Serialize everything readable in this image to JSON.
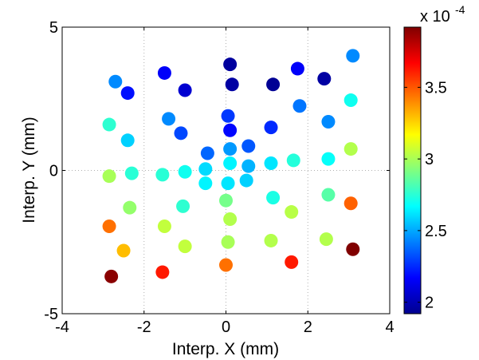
{
  "chart_data": {
    "type": "scatter",
    "xlabel": "Interp. X (mm)",
    "ylabel": "Interp. Y (mm)",
    "xlim": [
      -4,
      4
    ],
    "ylim": [
      -5,
      5
    ],
    "xticks": [
      "-4",
      "-2",
      "0",
      "2",
      "4"
    ],
    "yticks": [
      "5",
      "0",
      "-5"
    ],
    "grid": "dotted",
    "colorbar": {
      "colormap": "jet",
      "range": [
        1.92,
        3.92
      ],
      "ticks": [
        "3.5",
        "3",
        "2.5",
        "2"
      ],
      "multiplier": "x 10",
      "exponent": "-4"
    },
    "points": [
      {
        "x": -2.7,
        "y": 3.1,
        "value": 2.44
      },
      {
        "x": -2.4,
        "y": 2.7,
        "value": 2.2
      },
      {
        "x": -1.5,
        "y": 3.4,
        "value": 2.16
      },
      {
        "x": -1.0,
        "y": 2.8,
        "value": 2.08
      },
      {
        "x": 0.1,
        "y": 3.7,
        "value": 1.98
      },
      {
        "x": 0.15,
        "y": 3.0,
        "value": 1.99
      },
      {
        "x": 1.15,
        "y": 3.0,
        "value": 1.96
      },
      {
        "x": 1.75,
        "y": 3.55,
        "value": 2.16
      },
      {
        "x": 2.4,
        "y": 3.2,
        "value": 1.99
      },
      {
        "x": 3.1,
        "y": 4.0,
        "value": 2.44
      },
      {
        "x": -2.85,
        "y": 1.6,
        "value": 2.76
      },
      {
        "x": -2.4,
        "y": 1.05,
        "value": 2.58
      },
      {
        "x": -1.4,
        "y": 1.8,
        "value": 2.44
      },
      {
        "x": -1.1,
        "y": 1.3,
        "value": 2.31
      },
      {
        "x": 0.05,
        "y": 1.9,
        "value": 2.28
      },
      {
        "x": 0.1,
        "y": 1.4,
        "value": 2.18
      },
      {
        "x": 1.1,
        "y": 1.5,
        "value": 2.25
      },
      {
        "x": 1.8,
        "y": 2.25,
        "value": 2.4
      },
      {
        "x": 2.5,
        "y": 1.7,
        "value": 2.44
      },
      {
        "x": 3.05,
        "y": 2.45,
        "value": 2.7
      },
      {
        "x": -0.45,
        "y": 0.6,
        "value": 2.37
      },
      {
        "x": 0.1,
        "y": 0.75,
        "value": 2.47
      },
      {
        "x": 0.55,
        "y": 0.85,
        "value": 2.34
      },
      {
        "x": -0.5,
        "y": 0.05,
        "value": 2.6
      },
      {
        "x": 0.1,
        "y": 0.25,
        "value": 2.65
      },
      {
        "x": 0.55,
        "y": 0.15,
        "value": 2.52
      },
      {
        "x": -0.5,
        "y": -0.45,
        "value": 2.65
      },
      {
        "x": 0.05,
        "y": -0.45,
        "value": 2.62
      },
      {
        "x": 0.5,
        "y": -0.35,
        "value": 2.58
      },
      {
        "x": -2.85,
        "y": -0.2,
        "value": 3.0
      },
      {
        "x": -2.3,
        "y": -0.1,
        "value": 2.75
      },
      {
        "x": -1.55,
        "y": -0.15,
        "value": 2.75
      },
      {
        "x": -1.0,
        "y": -0.05,
        "value": 2.7
      },
      {
        "x": 1.1,
        "y": 0.25,
        "value": 2.62
      },
      {
        "x": 1.65,
        "y": 0.35,
        "value": 2.74
      },
      {
        "x": 2.5,
        "y": 0.4,
        "value": 2.68
      },
      {
        "x": 3.05,
        "y": 0.75,
        "value": 3.02
      },
      {
        "x": -2.35,
        "y": -1.3,
        "value": 2.96
      },
      {
        "x": -1.05,
        "y": -1.25,
        "value": 2.76
      },
      {
        "x": 0.0,
        "y": -1.05,
        "value": 2.9
      },
      {
        "x": 1.15,
        "y": -0.95,
        "value": 2.72
      },
      {
        "x": 1.6,
        "y": -1.45,
        "value": 3.03
      },
      {
        "x": 2.5,
        "y": -0.85,
        "value": 2.84
      },
      {
        "x": 3.05,
        "y": -1.15,
        "value": 3.48
      },
      {
        "x": -2.85,
        "y": -1.95,
        "value": 3.45
      },
      {
        "x": -1.5,
        "y": -1.95,
        "value": 3.05
      },
      {
        "x": 0.1,
        "y": -1.7,
        "value": 3.02
      },
      {
        "x": -2.5,
        "y": -2.8,
        "value": 3.3
      },
      {
        "x": -1.0,
        "y": -2.65,
        "value": 3.05
      },
      {
        "x": 0.05,
        "y": -2.5,
        "value": 3.0
      },
      {
        "x": 1.1,
        "y": -2.45,
        "value": 3.02
      },
      {
        "x": 2.45,
        "y": -2.4,
        "value": 3.02
      },
      {
        "x": 3.1,
        "y": -2.75,
        "value": 3.92
      },
      {
        "x": -2.8,
        "y": -3.7,
        "value": 3.9
      },
      {
        "x": -1.55,
        "y": -3.55,
        "value": 3.62
      },
      {
        "x": 0.0,
        "y": -3.3,
        "value": 3.45
      },
      {
        "x": 1.6,
        "y": -3.2,
        "value": 3.62
      }
    ]
  }
}
